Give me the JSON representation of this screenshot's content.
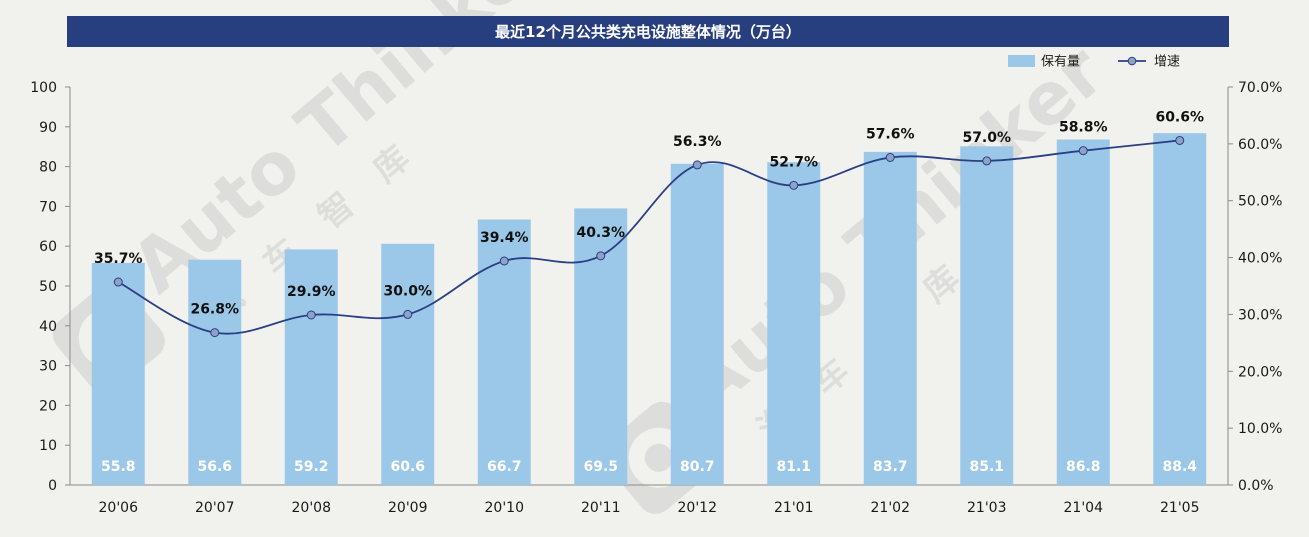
{
  "chart_data": {
    "type": "bar+line",
    "title": "最近12个月公共类充电设施整体情况（万台）",
    "categories": [
      "20'06",
      "20'07",
      "20'08",
      "20'09",
      "20'10",
      "20'11",
      "20'12",
      "21'01",
      "21'02",
      "21'03",
      "21'04",
      "21'05"
    ],
    "series": [
      {
        "name": "保有量",
        "type": "bar",
        "axis": "left",
        "values": [
          55.8,
          56.6,
          59.2,
          60.6,
          66.7,
          69.5,
          80.7,
          81.1,
          83.7,
          85.1,
          86.8,
          88.4
        ],
        "labels": [
          "55.8",
          "56.6",
          "59.2",
          "60.6",
          "66.7",
          "69.5",
          "80.7",
          "81.1",
          "83.7",
          "85.1",
          "86.8",
          "88.4"
        ],
        "color": "#9bc8e9"
      },
      {
        "name": "增速",
        "type": "line",
        "axis": "right",
        "values": [
          35.7,
          26.8,
          29.9,
          30.0,
          39.4,
          40.3,
          56.3,
          52.7,
          57.6,
          57.0,
          58.8,
          60.6
        ],
        "labels": [
          "35.7%",
          "26.8%",
          "29.9%",
          "30.0%",
          "39.4%",
          "40.3%",
          "56.3%",
          "52.7%",
          "57.6%",
          "57.0%",
          "58.8%",
          "60.6%"
        ],
        "color": "#2b3f84"
      }
    ],
    "y_left": {
      "ylim": [
        0,
        100
      ],
      "ticks": [
        "0",
        "10",
        "20",
        "30",
        "40",
        "50",
        "60",
        "70",
        "80",
        "90",
        "100"
      ]
    },
    "y_right": {
      "ylim": [
        0,
        70
      ],
      "ticks": [
        "0.0%",
        "10.0%",
        "20.0%",
        "30.0%",
        "40.0%",
        "50.0%",
        "60.0%",
        "70.0%"
      ]
    },
    "grid": false,
    "legend_position": "top-right"
  },
  "watermark": {
    "text": "Auto Thinker",
    "sub": "汽车智库"
  },
  "colors": {
    "title_bar": "#273f7e",
    "title_text": "#ffffff",
    "background": "#f1f2ee",
    "axis": "#8a8a8a",
    "text": "#1a1a1a"
  }
}
